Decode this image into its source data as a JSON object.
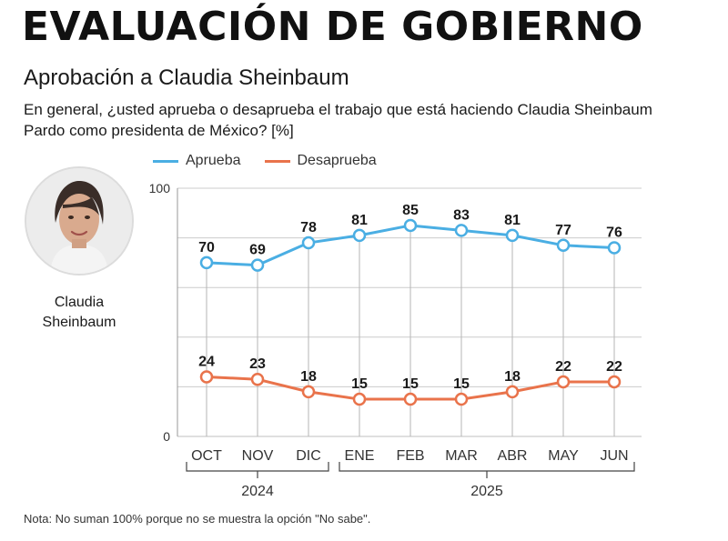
{
  "header": {
    "title": "EVALUACIÓN DE GOBIERNO",
    "subtitle": "Aprobación a Claudia Sheinbaum",
    "question": "En general, ¿usted aprueba o desaprueba el trabajo que está haciendo Claudia Sheinbaum Pardo como presidenta de México? [%]"
  },
  "person": {
    "name_line1": "Claudia",
    "name_line2": "Sheinbaum"
  },
  "colors": {
    "approve": "#4aaee3",
    "disapprove": "#e9734b",
    "grid": "#cccccc"
  },
  "chart_data": {
    "type": "line",
    "categories": [
      "OCT",
      "NOV",
      "DIC",
      "ENE",
      "FEB",
      "MAR",
      "ABR",
      "MAY",
      "JUN"
    ],
    "series": [
      {
        "name": "Aprueba",
        "values": [
          70,
          69,
          78,
          81,
          85,
          83,
          81,
          77,
          76
        ]
      },
      {
        "name": "Desaprueba",
        "values": [
          24,
          23,
          18,
          15,
          15,
          15,
          18,
          22,
          22
        ]
      }
    ],
    "ylim": [
      0,
      100
    ],
    "yticks": [
      0,
      100
    ],
    "year_groups": [
      {
        "label": "2024",
        "categories": [
          "OCT",
          "NOV",
          "DIC"
        ]
      },
      {
        "label": "2025",
        "categories": [
          "ENE",
          "FEB",
          "MAR",
          "ABR",
          "MAY",
          "JUN"
        ]
      }
    ],
    "legend_position": "top-left"
  },
  "footer": {
    "note": "Nota: No suman 100% porque no se muestra la opción \"No sabe\"."
  }
}
